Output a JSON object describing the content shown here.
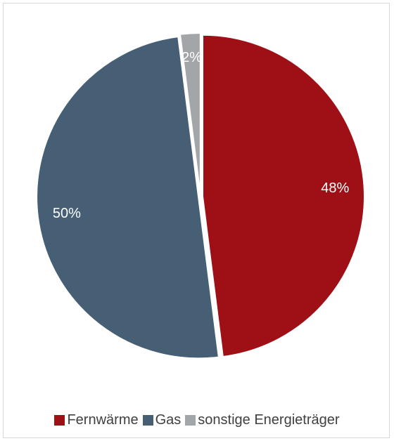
{
  "chart_data": {
    "type": "pie",
    "slices": [
      {
        "label": "Fernwärme",
        "value": 48,
        "value_label": "48%",
        "color": "#9e1016"
      },
      {
        "label": "Gas",
        "value": 50,
        "value_label": "50%",
        "color": "#465f74"
      },
      {
        "label": "sonstige Energieträger",
        "value": 2,
        "value_label": "2%",
        "color": "#a3a6a8"
      }
    ],
    "legend_position": "bottom",
    "label_color": "#ffffff"
  }
}
